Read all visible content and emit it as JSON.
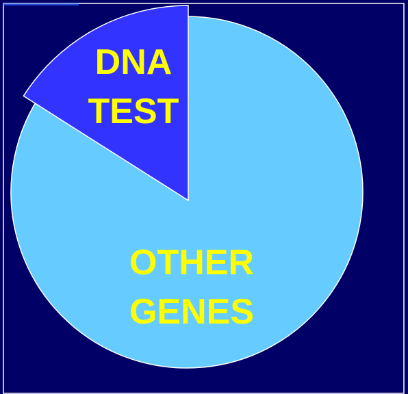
{
  "chart_data": {
    "type": "pie",
    "categories": [
      "DNA TEST",
      "OTHER GENES"
    ],
    "values": [
      16,
      84
    ],
    "colors": [
      "#3333ff",
      "#66ccff"
    ]
  }
}
